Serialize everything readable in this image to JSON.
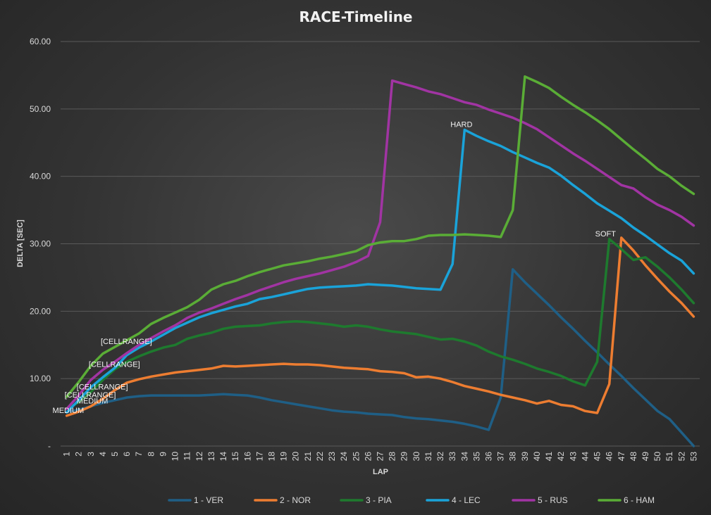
{
  "chart_data": {
    "type": "line",
    "title": "RACE-Timeline",
    "xlabel": "LAP",
    "ylabel": "DELTA [SEC]",
    "x": [
      1,
      2,
      3,
      4,
      5,
      6,
      7,
      8,
      9,
      10,
      11,
      12,
      13,
      14,
      15,
      16,
      17,
      18,
      19,
      20,
      21,
      22,
      23,
      24,
      25,
      26,
      27,
      28,
      29,
      30,
      31,
      32,
      33,
      34,
      35,
      36,
      37,
      38,
      39,
      40,
      41,
      42,
      43,
      44,
      45,
      46,
      47,
      48,
      49,
      50,
      51,
      52,
      53
    ],
    "ylim": [
      0,
      60
    ],
    "yticks": [
      "-",
      "10.00",
      "20.00",
      "30.00",
      "40.00",
      "50.00",
      "60.00"
    ],
    "grid": true,
    "legend_position": "bottom",
    "series": [
      {
        "name": "1 - VER",
        "color": "#1f5f86",
        "values": [
          5.0,
          5.4,
          5.9,
          6.4,
          6.8,
          7.2,
          7.4,
          7.5,
          7.5,
          7.5,
          7.5,
          7.5,
          7.6,
          7.7,
          7.6,
          7.5,
          7.2,
          6.8,
          6.5,
          6.2,
          5.9,
          5.6,
          5.3,
          5.1,
          5.0,
          4.8,
          4.7,
          4.6,
          4.3,
          4.1,
          4.0,
          3.8,
          3.6,
          3.3,
          2.9,
          2.4,
          7.2,
          26.2,
          24.3,
          22.6,
          20.9,
          19.1,
          17.4,
          15.6,
          13.9,
          12.1,
          10.4,
          8.6,
          6.9,
          5.2,
          4.0,
          2.0,
          0.0
        ]
      },
      {
        "name": "2 - NOR",
        "color": "#ed7d31",
        "values": [
          4.5,
          5.1,
          5.9,
          7.0,
          8.3,
          9.4,
          9.9,
          10.3,
          10.6,
          10.9,
          11.1,
          11.3,
          11.5,
          11.9,
          11.8,
          11.9,
          12.0,
          12.1,
          12.2,
          12.1,
          12.1,
          12.0,
          11.8,
          11.6,
          11.5,
          11.4,
          11.1,
          11.0,
          10.8,
          10.2,
          10.3,
          10.0,
          9.5,
          8.9,
          8.5,
          8.1,
          7.6,
          7.2,
          6.8,
          6.3,
          6.7,
          6.1,
          5.9,
          5.2,
          4.9,
          9.2,
          30.9,
          29.0,
          26.8,
          24.8,
          22.9,
          21.2,
          19.2
        ]
      },
      {
        "name": "3 - PIA",
        "color": "#1e7a2e",
        "values": [
          5.5,
          6.5,
          8.0,
          9.8,
          11.4,
          12.5,
          13.3,
          14.0,
          14.6,
          15.0,
          15.9,
          16.4,
          16.8,
          17.4,
          17.7,
          17.8,
          17.9,
          18.2,
          18.4,
          18.5,
          18.4,
          18.2,
          18.0,
          17.7,
          17.9,
          17.7,
          17.3,
          17.0,
          16.8,
          16.6,
          16.2,
          15.8,
          15.9,
          15.5,
          14.9,
          14.0,
          13.3,
          12.8,
          12.2,
          11.5,
          11.0,
          10.4,
          9.6,
          9.0,
          12.5,
          30.7,
          29.2,
          27.6,
          28.0,
          26.6,
          25.0,
          23.2,
          21.2
        ]
      },
      {
        "name": "4 - LEC",
        "color": "#1aa3d9",
        "values": [
          5.0,
          6.8,
          8.7,
          10.2,
          11.6,
          13.5,
          14.6,
          15.5,
          16.5,
          17.5,
          18.3,
          19.1,
          19.7,
          20.2,
          20.7,
          21.1,
          21.8,
          22.1,
          22.5,
          22.9,
          23.3,
          23.5,
          23.6,
          23.7,
          23.8,
          24.0,
          23.9,
          23.8,
          23.6,
          23.4,
          23.3,
          23.2,
          27.0,
          46.9,
          46.0,
          45.2,
          44.5,
          43.6,
          42.8,
          42.0,
          41.3,
          40.1,
          38.7,
          37.4,
          36.0,
          34.9,
          33.8,
          32.4,
          31.2,
          29.9,
          28.6,
          27.5,
          25.6
        ]
      },
      {
        "name": "5 - RUS",
        "color": "#a134a3",
        "values": [
          5.5,
          7.5,
          9.8,
          11.3,
          12.5,
          13.8,
          15.0,
          16.0,
          17.0,
          17.9,
          19.0,
          19.8,
          20.4,
          21.1,
          21.8,
          22.4,
          23.1,
          23.7,
          24.3,
          24.8,
          25.2,
          25.6,
          26.1,
          26.6,
          27.3,
          28.2,
          33.2,
          54.2,
          53.7,
          53.2,
          52.6,
          52.2,
          51.6,
          51.0,
          50.6,
          49.9,
          49.3,
          48.7,
          47.9,
          47.0,
          45.8,
          44.6,
          43.4,
          42.3,
          41.1,
          39.9,
          38.7,
          38.2,
          36.9,
          35.8,
          35.0,
          34.0,
          32.7
        ]
      },
      {
        "name": "6 - HAM",
        "color": "#5aad36",
        "values": [
          7.3,
          9.5,
          11.9,
          13.7,
          14.7,
          15.7,
          16.7,
          18.1,
          19.0,
          19.8,
          20.6,
          21.7,
          23.2,
          24.0,
          24.5,
          25.2,
          25.8,
          26.3,
          26.8,
          27.1,
          27.4,
          27.8,
          28.1,
          28.5,
          28.9,
          29.8,
          30.2,
          30.4,
          30.4,
          30.7,
          31.2,
          31.3,
          31.3,
          31.4,
          31.3,
          31.2,
          31.0,
          35.0,
          54.8,
          54.0,
          53.1,
          51.8,
          50.6,
          49.5,
          48.3,
          47.0,
          45.5,
          44.0,
          42.6,
          41.1,
          40.0,
          38.6,
          37.4
        ]
      }
    ],
    "annotations": [
      {
        "text": "MEDIUM",
        "series": "2 - NOR",
        "x": 1
      },
      {
        "text": "MEDIUM",
        "series": "1 - VER",
        "x": 3
      },
      {
        "text": "[CELLRANGE]",
        "series": "4 - LEC",
        "x": 2
      },
      {
        "text": "[CELLRANGE]",
        "series": "3 - PIA",
        "x": 3
      },
      {
        "text": "[CELLRANGE]",
        "series": "5 - RUS",
        "x": 4
      },
      {
        "text": "[CELLRANGE]",
        "series": "6 - HAM",
        "x": 5
      },
      {
        "text": "HARD",
        "series": "4 - LEC",
        "x": 34
      },
      {
        "text": "SOFT",
        "series": "3 - PIA",
        "x": 46
      }
    ]
  }
}
